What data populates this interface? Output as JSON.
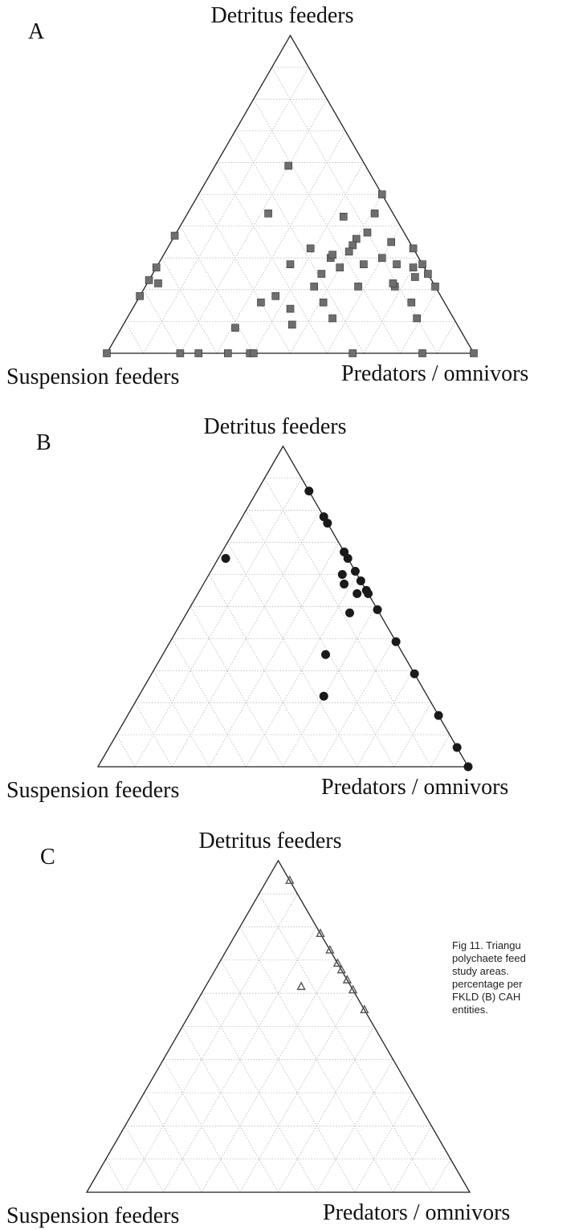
{
  "chart_data": [
    {
      "type": "ternary",
      "panel": "A",
      "top_label": "Detritus feeders",
      "left_label": "Suspension feeders",
      "right_label": "Predators / omnivors",
      "marker": "square",
      "color": "#6e6e6e",
      "grid": true,
      "ticks": [
        10,
        20,
        30,
        40,
        50,
        60,
        70,
        80,
        90
      ],
      "points": [
        [
          59,
          21,
          20
        ],
        [
          44,
          34,
          22
        ],
        [
          37,
          63,
          0
        ],
        [
          50,
          0,
          50
        ],
        [
          43,
          14,
          43
        ],
        [
          44,
          5,
          51
        ],
        [
          38,
          10,
          52
        ],
        [
          36,
          14,
          50
        ],
        [
          34,
          16,
          50
        ],
        [
          35,
          5,
          60
        ],
        [
          33,
          0,
          67
        ],
        [
          33,
          28,
          39
        ],
        [
          30,
          24,
          46
        ],
        [
          31,
          23,
          46
        ],
        [
          32,
          18,
          50
        ],
        [
          30,
          10,
          60
        ],
        [
          27,
          3,
          70
        ],
        [
          28,
          36,
          36
        ],
        [
          27,
          23,
          50
        ],
        [
          25,
          29,
          46
        ],
        [
          28,
          16,
          56
        ],
        [
          28,
          7,
          65
        ],
        [
          28,
          0,
          72
        ],
        [
          21,
          11,
          68
        ],
        [
          24,
          4,
          72
        ],
        [
          25,
          0,
          75
        ],
        [
          21,
          0,
          79
        ],
        [
          18,
          45,
          37
        ],
        [
          16,
          50,
          34
        ],
        [
          21,
          33,
          46
        ],
        [
          14,
          43,
          43
        ],
        [
          16,
          33,
          51
        ],
        [
          21,
          21,
          58
        ],
        [
          22,
          11,
          67
        ],
        [
          16,
          9,
          75
        ],
        [
          9,
          45,
          46
        ],
        [
          11,
          33,
          56
        ],
        [
          11,
          10,
          79
        ],
        [
          8,
          61,
          31
        ],
        [
          27,
          73,
          0
        ],
        [
          23,
          77,
          0
        ],
        [
          22,
          75,
          3
        ],
        [
          18,
          82,
          0
        ],
        [
          0,
          100,
          0
        ],
        [
          0,
          80,
          20
        ],
        [
          0,
          75,
          25
        ],
        [
          0,
          67,
          33
        ],
        [
          0,
          61,
          39
        ],
        [
          0,
          60,
          40
        ],
        [
          0,
          33,
          67
        ],
        [
          0,
          14,
          86
        ],
        [
          0,
          0,
          100
        ]
      ]
    },
    {
      "type": "ternary",
      "panel": "B",
      "top_label": "Detritus feeders",
      "left_label": "Suspension feeders",
      "right_label": "Predators / omnivors",
      "marker": "circle",
      "color": "#1a1a1a",
      "grid": true,
      "ticks": [
        10,
        20,
        30,
        40,
        50,
        60,
        70,
        80,
        90
      ],
      "points": [
        [
          86,
          0,
          14
        ],
        [
          78,
          0,
          22
        ],
        [
          76,
          0,
          24
        ],
        [
          67,
          0,
          33
        ],
        [
          65,
          0,
          35
        ],
        [
          61,
          0,
          39
        ],
        [
          58,
          0,
          42
        ],
        [
          55,
          0,
          45
        ],
        [
          54,
          0,
          46
        ],
        [
          49,
          0,
          51
        ],
        [
          39,
          0,
          61
        ],
        [
          29,
          0,
          71
        ],
        [
          16,
          0,
          84
        ],
        [
          6,
          0,
          94
        ],
        [
          0,
          0,
          100
        ],
        [
          65,
          33,
          2
        ],
        [
          60,
          4,
          36
        ],
        [
          57,
          5,
          38
        ],
        [
          48,
          8,
          44
        ],
        [
          54,
          3,
          43
        ],
        [
          35,
          21,
          44
        ],
        [
          22,
          28,
          50
        ]
      ]
    },
    {
      "type": "ternary",
      "panel": "C",
      "top_label": "Detritus feeders",
      "left_label": "Suspension feeders",
      "right_label": "Predators / omnivors",
      "marker": "triangle",
      "color": "#555555",
      "grid": true,
      "ticks": [
        10,
        20,
        30,
        40,
        50,
        60,
        70,
        80,
        90
      ],
      "points": [
        [
          94,
          0,
          6
        ],
        [
          78,
          0,
          22
        ],
        [
          73,
          0,
          27
        ],
        [
          69,
          0,
          31
        ],
        [
          67,
          0,
          33
        ],
        [
          64,
          0,
          36
        ],
        [
          61,
          0,
          39
        ],
        [
          55,
          0,
          45
        ],
        [
          62,
          13,
          25
        ]
      ]
    }
  ],
  "caption": [
    "Fig 11. Triangu",
    "polychaete feed",
    "study   areas.",
    "percentage  per",
    "FKLD (B) CAH",
    "entities."
  ]
}
